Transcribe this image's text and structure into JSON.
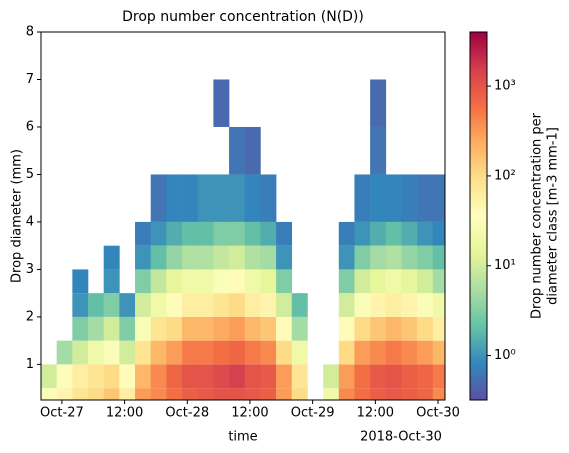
{
  "chart_data": {
    "type": "heatmap",
    "title": "Drop number concentration (N(D))",
    "x_label": "time",
    "x_offset_label": "2018-Oct-30",
    "y_label": "Drop diameter (mm)",
    "colorbar_label": [
      "Drop number concentration per",
      "diameter class [m-3 mm-1]"
    ],
    "colormap": [
      "#5e4fa2",
      "#3288bd",
      "#66c2a5",
      "#abdda4",
      "#e6f598",
      "#ffffbf",
      "#fee08b",
      "#fdae61",
      "#f46d43",
      "#d53e4f",
      "#9e0142"
    ],
    "color_scale": "log",
    "clim": [
      0.32,
      4000
    ],
    "cticks": [
      {
        "value": 1,
        "label": "10⁰"
      },
      {
        "value": 10,
        "label": "10¹"
      },
      {
        "value": 100,
        "label": "10²"
      },
      {
        "value": 1000,
        "label": "10³"
      }
    ],
    "xlim": [
      "2018-10-26T20:00",
      "2018-10-30T01:20"
    ],
    "xticks": [
      {
        "value": "2018-10-27T00:00",
        "label": "Oct-27"
      },
      {
        "value": "2018-10-27T12:00",
        "label": "12:00"
      },
      {
        "value": "2018-10-28T00:00",
        "label": "Oct-28"
      },
      {
        "value": "2018-10-28T12:00",
        "label": "12:00"
      },
      {
        "value": "2018-10-29T00:00",
        "label": "Oct-29"
      },
      {
        "value": "2018-10-29T12:00",
        "label": "12:00"
      },
      {
        "value": "2018-10-30T00:00",
        "label": "Oct-30"
      }
    ],
    "ylim": [
      0.25,
      8
    ],
    "yticks": [
      1,
      2,
      3,
      4,
      5,
      6,
      7,
      8
    ],
    "x_edges": [
      "2018-10-26T20:00",
      "2018-10-26T23:00",
      "2018-10-27T02:00",
      "2018-10-27T05:00",
      "2018-10-27T08:00",
      "2018-10-27T11:00",
      "2018-10-27T14:00",
      "2018-10-27T17:00",
      "2018-10-27T20:00",
      "2018-10-27T23:00",
      "2018-10-28T02:00",
      "2018-10-28T05:00",
      "2018-10-28T08:00",
      "2018-10-28T11:00",
      "2018-10-28T14:00",
      "2018-10-28T17:00",
      "2018-10-28T20:00",
      "2018-10-28T23:00",
      "2018-10-29T02:00",
      "2018-10-29T05:00",
      "2018-10-29T08:00",
      "2018-10-29T11:00",
      "2018-10-29T14:00",
      "2018-10-29T17:00",
      "2018-10-29T20:00",
      "2018-10-29T23:00",
      "2018-10-30T02:00"
    ],
    "y_edges": [
      0.25,
      0.5,
      1,
      1.5,
      2,
      2.5,
      3,
      3.5,
      4,
      5,
      6,
      7
    ],
    "z": [
      [
        30,
        50,
        80,
        100,
        150,
        60,
        300,
        400,
        600,
        800,
        900,
        1000,
        1000,
        900,
        800,
        300,
        100,
        null,
        20,
        400,
        600,
        800,
        900,
        800,
        700,
        400
      ],
      [
        10,
        40,
        60,
        80,
        100,
        40,
        200,
        400,
        700,
        1000,
        1000,
        1200,
        1500,
        1000,
        900,
        300,
        80,
        null,
        10,
        300,
        600,
        900,
        1000,
        800,
        700,
        500
      ],
      [
        null,
        5,
        10,
        20,
        30,
        10,
        80,
        200,
        300,
        500,
        500,
        600,
        700,
        500,
        400,
        100,
        20,
        null,
        null,
        100,
        300,
        400,
        500,
        400,
        300,
        200
      ],
      [
        null,
        null,
        3,
        5,
        10,
        3,
        30,
        80,
        100,
        200,
        200,
        250,
        300,
        200,
        150,
        40,
        5,
        null,
        null,
        40,
        100,
        150,
        200,
        150,
        100,
        60
      ],
      [
        null,
        null,
        1,
        2,
        3,
        1,
        10,
        20,
        40,
        60,
        60,
        80,
        100,
        60,
        50,
        10,
        2,
        null,
        null,
        10,
        30,
        50,
        60,
        50,
        30,
        20
      ],
      [
        null,
        null,
        0.8,
        null,
        1,
        null,
        3,
        8,
        15,
        20,
        20,
        30,
        40,
        20,
        15,
        3,
        null,
        null,
        null,
        3,
        10,
        15,
        20,
        15,
        10,
        5
      ],
      [
        null,
        null,
        null,
        null,
        0.8,
        null,
        1,
        2,
        4,
        6,
        6,
        8,
        10,
        6,
        5,
        1,
        null,
        null,
        null,
        1,
        3,
        5,
        6,
        4,
        3,
        2
      ],
      [
        null,
        null,
        null,
        null,
        null,
        null,
        0.7,
        1,
        1.5,
        2,
        2,
        3,
        3,
        2,
        1.5,
        0.7,
        null,
        null,
        null,
        0.7,
        1,
        1.5,
        2,
        1.5,
        1,
        0.8
      ],
      [
        null,
        null,
        null,
        null,
        null,
        null,
        null,
        0.6,
        0.8,
        0.8,
        1,
        1,
        1,
        0.8,
        0.7,
        null,
        null,
        null,
        null,
        null,
        0.7,
        0.8,
        0.8,
        0.7,
        0.6,
        0.6
      ],
      [
        null,
        null,
        null,
        null,
        null,
        null,
        null,
        null,
        null,
        null,
        null,
        null,
        0.6,
        0.5,
        null,
        null,
        null,
        null,
        null,
        null,
        null,
        0.6,
        null,
        null,
        null,
        null
      ],
      [
        null,
        null,
        null,
        null,
        null,
        null,
        null,
        null,
        null,
        null,
        null,
        0.5,
        null,
        null,
        null,
        null,
        null,
        null,
        null,
        null,
        null,
        0.5,
        null,
        null,
        null,
        null
      ]
    ]
  }
}
